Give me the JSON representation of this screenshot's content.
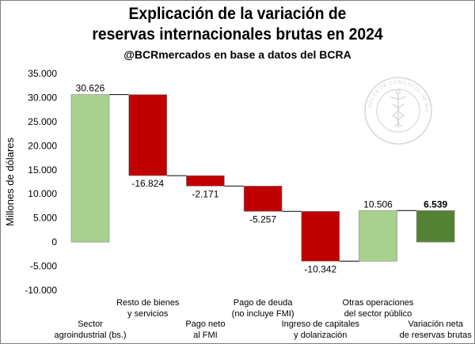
{
  "header": {
    "title_line1": "Explicación de la variación de",
    "title_line2": "reservas internacionales brutas en 2024",
    "subtitle": "@BCRmercados en base a datos del BCRA"
  },
  "watermark": {
    "text": "BOLSA DE COMERCIO DE ROSARIO"
  },
  "chart_data": {
    "type": "bar",
    "subtype": "waterfall",
    "ylabel": "Millones de dólares",
    "ylim": [
      -10000,
      35000
    ],
    "yticks": [
      35000,
      30000,
      25000,
      20000,
      15000,
      10000,
      5000,
      0,
      -5000,
      -10000
    ],
    "ytick_labels": [
      "35.000",
      "30.000",
      "25.000",
      "20.000",
      "15.000",
      "10.000",
      "5.000",
      "0",
      "-5.000",
      "-10.000"
    ],
    "grid": false,
    "legend": "none",
    "categories": [
      [
        "Sector",
        "agroindustrial (bs.)"
      ],
      [
        "Resto de bienes",
        "y servicios"
      ],
      [
        "Pago neto",
        "al FMI"
      ],
      [
        "Pago de deuda",
        "(no incluye FMI)"
      ],
      [
        "Ingreso de capitales",
        "y dolarización"
      ],
      [
        "Otras operaciones",
        "del sector público"
      ],
      [
        "Variación neta",
        "de reservas brutas"
      ]
    ],
    "label_rows": [
      "low",
      "high",
      "low",
      "high",
      "low",
      "high",
      "low"
    ],
    "values": [
      30626,
      -16824,
      -2171,
      -5257,
      -10342,
      10506,
      6539
    ],
    "value_labels": [
      "30.626",
      "-16.824",
      "-2.171",
      "-5.257",
      "-10.342",
      "10.506",
      "6.539"
    ],
    "bar_kinds": [
      "increase",
      "decrease",
      "decrease",
      "decrease",
      "decrease",
      "increase",
      "total"
    ],
    "colors": {
      "increase": "#a9d18e",
      "decrease": "#c00000",
      "total": "#548235",
      "bar_edge": "#7f7f7f",
      "connector": "#000000",
      "axis_text": "#000000",
      "watermark": "#b8b8b8"
    }
  }
}
